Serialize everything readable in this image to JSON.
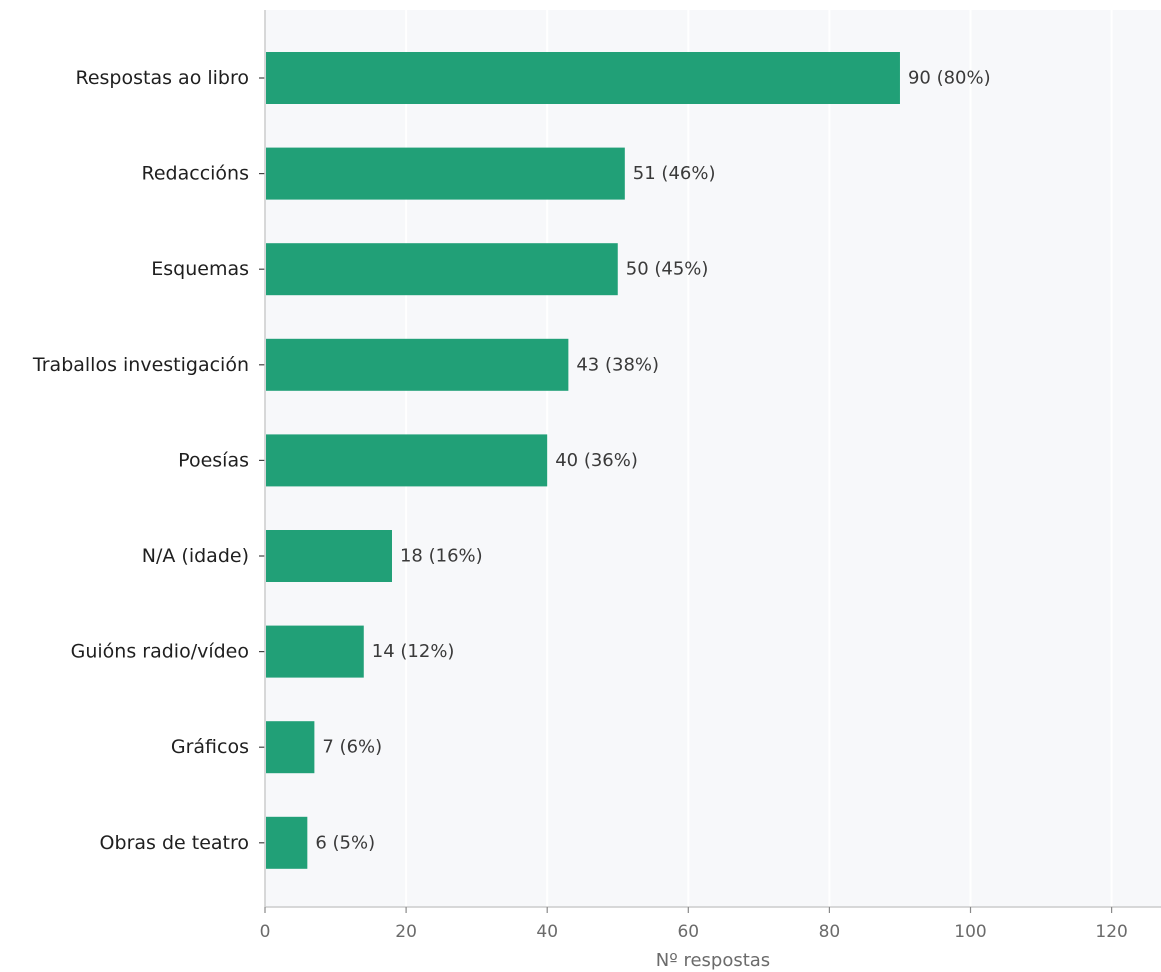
{
  "chart_data": {
    "type": "bar",
    "orientation": "horizontal",
    "categories": [
      "Respostas ao libro",
      "Redaccións",
      "Esquemas",
      "Traballos investigación",
      "Poesías",
      "N/A (idade)",
      "Guións radio/vídeo",
      "Gráficos",
      "Obras de teatro"
    ],
    "values": [
      90,
      51,
      50,
      43,
      40,
      18,
      14,
      7,
      6
    ],
    "value_labels": [
      "90  (80%)",
      "51  (46%)",
      "50  (45%)",
      "43  (38%)",
      "40  (36%)",
      "18  (16%)",
      "14  (12%)",
      "7  (6%)",
      "6  (5%)"
    ],
    "xlabel": "Nº respostas",
    "ylabel": "",
    "title": "",
    "xlim": [
      0,
      127
    ],
    "xticks": [
      0,
      20,
      40,
      60,
      80,
      100,
      120
    ],
    "grid": "vertical",
    "colors": {
      "bar": "#21a077",
      "plot_background": "#f7f8fa",
      "grid": "#ffffff",
      "axis": "#cccccc"
    }
  }
}
